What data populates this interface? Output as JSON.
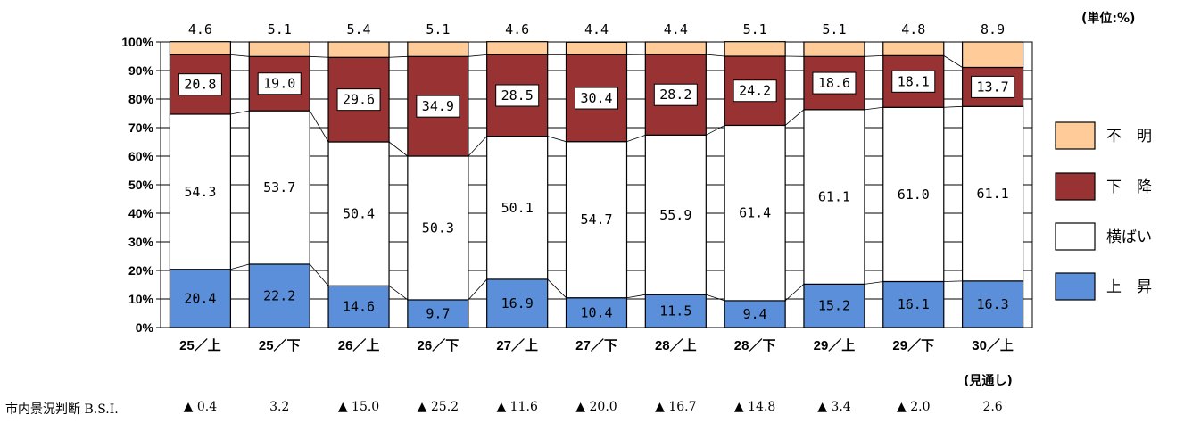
{
  "unit_label": "(単位:%)",
  "note_label": "(見通し)",
  "bsi": {
    "title": "市内景況判断 B.S.I.",
    "values": [
      "▲ 0.4",
      "3.2",
      "▲ 15.0",
      "▲ 25.2",
      "▲ 11.6",
      "▲ 20.0",
      "▲ 16.7",
      "▲ 14.8",
      "▲ 3.4",
      "▲ 2.0",
      "2.6"
    ]
  },
  "colors": {
    "unknown": "#ffcc99",
    "decline": "#993333",
    "flat": "#ffffff",
    "rise": "#5b8fd9"
  },
  "chart_data": {
    "type": "bar",
    "stacked": true,
    "categories": [
      "25／上",
      "25／下",
      "26／上",
      "26／下",
      "27／上",
      "27／下",
      "28／上",
      "28／下",
      "29／上",
      "29／下",
      "30／上"
    ],
    "series": [
      {
        "name": "上　昇",
        "key": "rise",
        "values": [
          20.4,
          22.2,
          14.6,
          9.7,
          16.9,
          10.4,
          11.5,
          9.4,
          15.2,
          16.1,
          16.3
        ],
        "labels": [
          "20.4",
          "22.2",
          "14.6",
          "9.7",
          "16.9",
          "10.4",
          "11.5",
          "9.4",
          "15.2",
          "16.1",
          "16.3"
        ]
      },
      {
        "name": "横ばい",
        "key": "flat",
        "values": [
          54.3,
          53.7,
          50.4,
          50.3,
          50.1,
          54.7,
          55.9,
          61.4,
          61.1,
          61.0,
          61.1
        ],
        "labels": [
          "54.3",
          "53.7",
          "50.4",
          "50.3",
          "50.1",
          "54.7",
          "55.9",
          "61.4",
          "61.1",
          "61.0",
          "61.1"
        ]
      },
      {
        "name": "下　降",
        "key": "decline",
        "values": [
          20.8,
          19.0,
          29.6,
          34.9,
          28.5,
          30.4,
          28.2,
          24.2,
          18.6,
          18.1,
          13.7
        ],
        "labels": [
          "20.8",
          "19.0",
          "29.6",
          "34.9",
          "28.5",
          "30.4",
          "28.2",
          "24.2",
          "18.6",
          "18.1",
          "13.7"
        ]
      },
      {
        "name": "不　明",
        "key": "unknown",
        "values": [
          4.6,
          5.1,
          5.4,
          5.1,
          4.6,
          4.4,
          4.4,
          5.1,
          5.1,
          4.8,
          8.9
        ],
        "labels": [
          "4.6",
          "5.1",
          "5.4",
          "5.1",
          "4.6",
          "4.4",
          "4.4",
          "5.1",
          "5.1",
          "4.8",
          "8.9"
        ]
      }
    ],
    "legend_order": [
      "unknown",
      "decline",
      "flat",
      "rise"
    ],
    "ylim": [
      0,
      100
    ],
    "yticks": [
      "0%",
      "10%",
      "20%",
      "30%",
      "40%",
      "50%",
      "60%",
      "70%",
      "80%",
      "90%",
      "100%"
    ],
    "grid": true,
    "legend_position": "right"
  }
}
